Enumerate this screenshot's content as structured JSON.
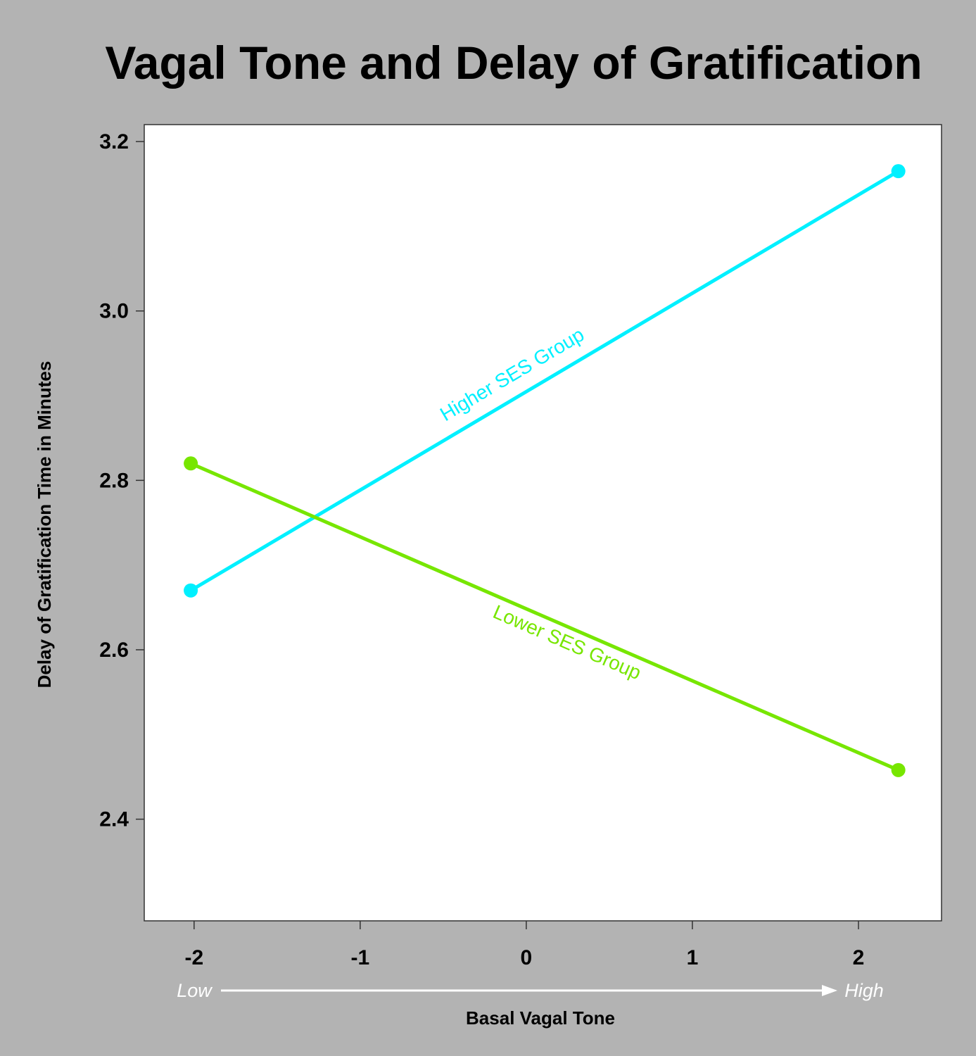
{
  "colors": {
    "background": "#b3b3b3",
    "plot_background": "#ffffff",
    "higher_ses": "#00f0ff",
    "lower_ses": "#77e600",
    "arrow": "#ffffff"
  },
  "chart_data": {
    "type": "line",
    "title": "Vagal Tone and Delay of Gratification",
    "xlabel": "Basal Vagal Tone",
    "ylabel": "Delay of Gratification Time in Minutes",
    "xlim": [
      -2.3,
      2.5
    ],
    "ylim": [
      2.28,
      3.22
    ],
    "xticks": [
      -2,
      -1,
      0,
      1,
      2
    ],
    "yticks": [
      2.4,
      2.6,
      2.8,
      3.0,
      3.2
    ],
    "ytick_labels": [
      "2.4",
      "2.6",
      "2.8",
      "3.0",
      "3.2"
    ],
    "x_range_labels": {
      "low": "Low",
      "high": "High"
    },
    "grid": false,
    "series": [
      {
        "name": "Higher SES Group",
        "color": "#00f0ff",
        "x": [
          -2.02,
          2.24
        ],
        "y": [
          2.67,
          3.165
        ]
      },
      {
        "name": "Lower SES Group",
        "color": "#77e600",
        "x": [
          -2.02,
          2.24
        ],
        "y": [
          2.82,
          2.458
        ]
      }
    ]
  }
}
